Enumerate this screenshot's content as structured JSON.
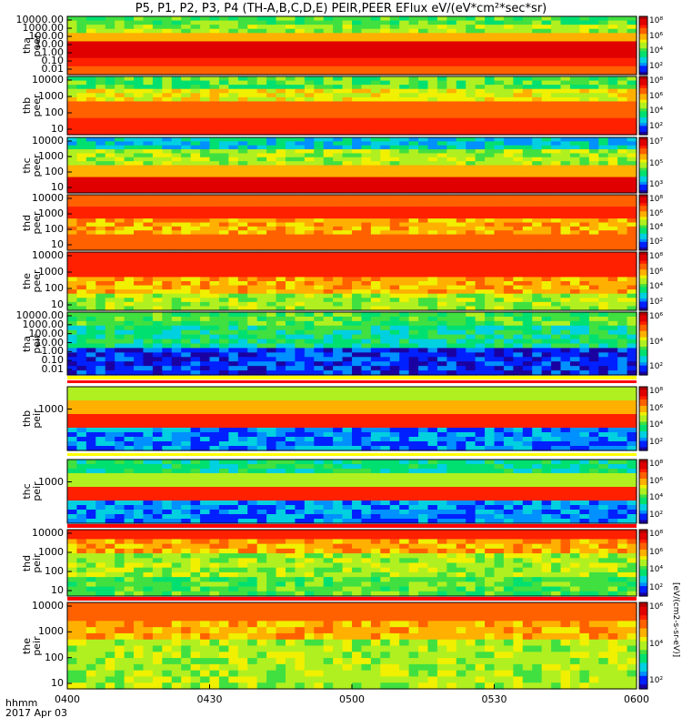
{
  "title": "P5, P1, P2, P3, P4 (TH-A,B,C,D,E) PEIR,PEER EFlux eV/(eV*cm²*sec*sr)",
  "colors": {
    "spectrum": [
      "#1a00a0",
      "#0020ff",
      "#0090ff",
      "#00d0e0",
      "#00e070",
      "#40e040",
      "#b0f020",
      "#f0f000",
      "#ffb000",
      "#ff6000",
      "#ff2000",
      "#e00000",
      "#b00000"
    ]
  },
  "x_axis": {
    "label_line1": "hhmm",
    "label_line2": "2017 Apr 03",
    "ticks": [
      "0400",
      "0430",
      "0500",
      "0530",
      "0600"
    ]
  },
  "colorbar_label": "[eV/(cm2-s-sr-eV)]",
  "chart_data": [
    {
      "type": "heatmap",
      "probe": "tha",
      "species": "peer",
      "ylabel": "tha\npeer",
      "yscale": "log",
      "yticks": [
        "10000.00",
        "1000.00",
        "100.00",
        "10.00",
        "1.00",
        "0.10",
        "0.01"
      ],
      "cbar_ticks": [
        "10⁸",
        "10⁶",
        "10⁴",
        "10²"
      ],
      "x_range": [
        "0400",
        "0600"
      ]
    },
    {
      "type": "heatmap",
      "probe": "thb",
      "species": "peer",
      "ylabel": "thb\npeer",
      "yscale": "log",
      "yticks": [
        "10000",
        "1000",
        "100",
        "10"
      ],
      "cbar_ticks": [
        "10⁸",
        "10⁶",
        "10⁴",
        "10²"
      ],
      "x_range": [
        "0400",
        "0600"
      ]
    },
    {
      "type": "heatmap",
      "probe": "thc",
      "species": "peer",
      "ylabel": "thc\npeer",
      "yscale": "log",
      "yticks": [
        "10000",
        "1000",
        "100",
        "10"
      ],
      "cbar_ticks": [
        "10⁷",
        "10⁵",
        "10³"
      ],
      "x_range": [
        "0400",
        "0600"
      ]
    },
    {
      "type": "heatmap",
      "probe": "thd",
      "species": "peer",
      "ylabel": "thd\npeer",
      "yscale": "log",
      "yticks": [
        "10000",
        "1000",
        "100",
        "10"
      ],
      "cbar_ticks": [
        "10⁸",
        "10⁶",
        "10⁴",
        "10²"
      ],
      "x_range": [
        "0400",
        "0600"
      ]
    },
    {
      "type": "heatmap",
      "probe": "the",
      "species": "peer",
      "ylabel": "the\npeer",
      "yscale": "log",
      "yticks": [
        "10000",
        "1000",
        "100",
        "10"
      ],
      "cbar_ticks": [
        "10⁸",
        "10⁶",
        "10⁴",
        "10²"
      ],
      "x_range": [
        "0400",
        "0600"
      ]
    },
    {
      "type": "heatmap",
      "probe": "tha",
      "species": "peir",
      "ylabel": "tha\npeir",
      "yscale": "log",
      "yticks": [
        "10000.00",
        "1000.00",
        "100.00",
        "10.00",
        "1.00",
        "0.10",
        "0.01"
      ],
      "cbar_ticks": [
        "10⁶",
        "10⁴",
        "10²"
      ],
      "x_range": [
        "0400",
        "0600"
      ]
    },
    {
      "type": "heatmap",
      "probe": "thb",
      "species": "peir",
      "ylabel": "thb\npeir",
      "yscale": "log",
      "yticks": [
        "1000"
      ],
      "cbar_ticks": [
        "10⁸",
        "10⁶",
        "10⁴",
        "10²"
      ],
      "x_range": [
        "0400",
        "0600"
      ]
    },
    {
      "type": "heatmap",
      "probe": "thc",
      "species": "peir",
      "ylabel": "thc\npeir",
      "yscale": "log",
      "yticks": [
        "1000"
      ],
      "cbar_ticks": [
        "10⁸",
        "10⁶",
        "10⁴",
        "10²"
      ],
      "x_range": [
        "0400",
        "0600"
      ]
    },
    {
      "type": "heatmap",
      "probe": "thd",
      "species": "peir",
      "ylabel": "thd\npeir",
      "yscale": "log",
      "yticks": [
        "10000",
        "1000",
        "100",
        "10"
      ],
      "cbar_ticks": [
        "10⁸",
        "10⁶",
        "10⁴",
        "10²"
      ],
      "x_range": [
        "0400",
        "0600"
      ]
    },
    {
      "type": "heatmap",
      "probe": "the",
      "species": "peir",
      "ylabel": "the\npeir",
      "yscale": "log",
      "yticks": [
        "10000",
        "1000",
        "100",
        "10"
      ],
      "cbar_ticks": [
        "10⁶",
        "10⁴",
        "10²"
      ],
      "x_range": [
        "0400",
        "0600"
      ]
    }
  ]
}
